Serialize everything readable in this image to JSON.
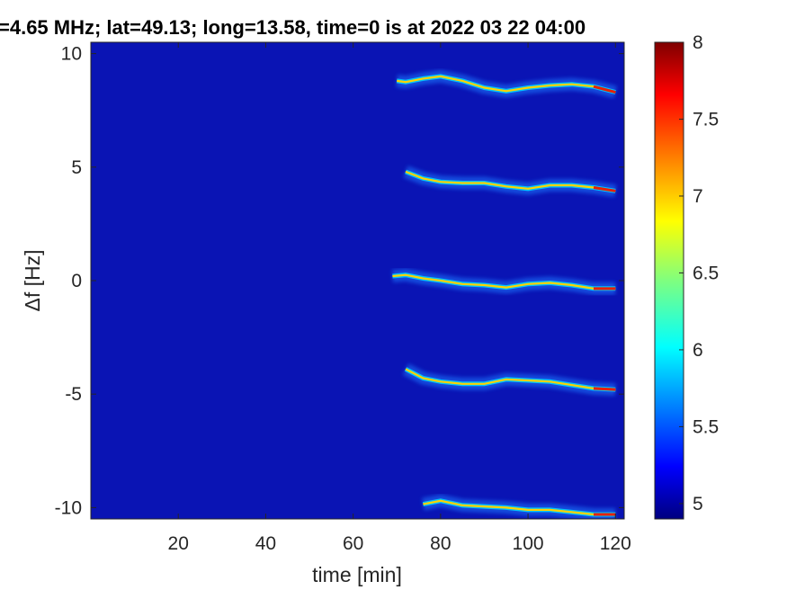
{
  "chart_data": {
    "type": "heatmap",
    "title": "=4.65 MHz;  lat=49.13; long=13.58, time=0 is at 2022 03 22 04:00",
    "xlabel": "time [min]",
    "ylabel": "Δf [Hz]",
    "xlim": [
      0,
      122
    ],
    "ylim": [
      -10.5,
      10.5
    ],
    "xticks": [
      20,
      40,
      60,
      80,
      100,
      120
    ],
    "xtick_labels": [
      "20",
      "40",
      "60",
      "80",
      "100",
      "120"
    ],
    "yticks": [
      10,
      5,
      0,
      -5,
      -10
    ],
    "ytick_labels": [
      "10",
      "5",
      "0",
      "-5",
      "-10"
    ],
    "colorbar": {
      "colormap": "jet",
      "clim": [
        4.9,
        8.0
      ],
      "ticks": [
        8,
        7.5,
        7,
        6.5,
        6,
        5.5,
        5
      ],
      "tick_labels": [
        "8",
        "7.5",
        "7",
        "6.5",
        "6",
        "5.5",
        "5"
      ]
    },
    "background_value": 5.0,
    "traces": [
      {
        "offset_hz": 9.0,
        "x": [
          70,
          72,
          76,
          80,
          85,
          90,
          95,
          100,
          105,
          110,
          115,
          120
        ],
        "y": [
          8.8,
          8.75,
          8.9,
          9.0,
          8.8,
          8.5,
          8.35,
          8.5,
          8.6,
          8.65,
          8.55,
          8.3
        ]
      },
      {
        "offset_hz": 5.0,
        "x": [
          72,
          76,
          80,
          85,
          90,
          95,
          100,
          105,
          110,
          115,
          120
        ],
        "y": [
          4.8,
          4.5,
          4.35,
          4.3,
          4.3,
          4.15,
          4.05,
          4.2,
          4.2,
          4.1,
          3.95
        ]
      },
      {
        "offset_hz": 0.0,
        "x": [
          69,
          72,
          76,
          80,
          85,
          90,
          95,
          100,
          105,
          110,
          115,
          120
        ],
        "y": [
          0.2,
          0.25,
          0.1,
          0.0,
          -0.15,
          -0.2,
          -0.3,
          -0.15,
          -0.1,
          -0.2,
          -0.35,
          -0.35
        ]
      },
      {
        "offset_hz": -5.0,
        "x": [
          72,
          76,
          80,
          85,
          90,
          95,
          100,
          105,
          110,
          115,
          120
        ],
        "y": [
          -3.9,
          -4.3,
          -4.45,
          -4.55,
          -4.55,
          -4.35,
          -4.4,
          -4.45,
          -4.6,
          -4.75,
          -4.8
        ]
      },
      {
        "offset_hz": -10.0,
        "x": [
          76,
          80,
          85,
          90,
          95,
          100,
          105,
          110,
          115,
          120
        ],
        "y": [
          -9.85,
          -9.7,
          -9.9,
          -9.95,
          -10.0,
          -10.1,
          -10.1,
          -10.2,
          -10.3,
          -10.3
        ]
      }
    ]
  }
}
